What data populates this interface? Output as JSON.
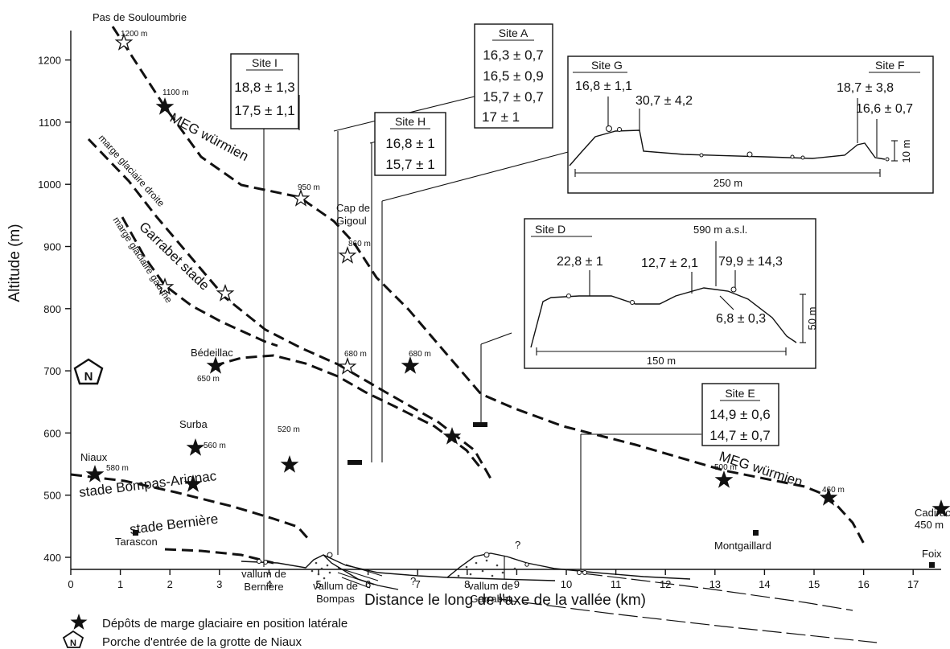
{
  "chart_data": {
    "type": "diagram",
    "xlabel": "Distance le long de l'axe de la vallée (km)",
    "ylabel": "Altitude (m)",
    "xlim": [
      0,
      17.5
    ],
    "ylim": [
      350,
      1230
    ],
    "xticks": [
      0,
      1,
      2,
      3,
      4,
      5,
      6,
      7,
      8,
      9,
      10,
      11,
      12,
      13,
      14,
      15,
      16,
      17
    ],
    "yticks": [
      400,
      500,
      600,
      700,
      800,
      900,
      1000,
      1100,
      1200
    ],
    "places": [
      {
        "label": "Pas de Souloumbrie",
        "x": 1.05,
        "y": 1208
      },
      {
        "label": "Cap de Gigoul",
        "x": 5.6,
        "y": 930
      },
      {
        "label": "Bédeillac",
        "x": 3.1,
        "y": 710
      },
      {
        "label": "Niaux",
        "x": 0.55,
        "y": 595
      },
      {
        "label": "Surba",
        "x": 2.5,
        "y": 580
      },
      {
        "label": "Tarascon",
        "x": 1.6,
        "y": 420
      },
      {
        "label": "Montgaillard",
        "x": 13.6,
        "y": 435
      },
      {
        "label": "Cadirac",
        "x": 17.05,
        "y": 480
      },
      {
        "label": "Foix",
        "x": 17.05,
        "y": 420
      }
    ],
    "altitude_labels": [
      {
        "text": "1200 m",
        "x": 1.1,
        "y": 1212
      },
      {
        "text": "1100 m",
        "x": 2.1,
        "y": 1118
      },
      {
        "text": "950 m",
        "x": 4.65,
        "y": 968
      },
      {
        "text": "860 m",
        "x": 5.75,
        "y": 878
      },
      {
        "text": "680 m",
        "x": 5.55,
        "y": 700
      },
      {
        "text": "680 m",
        "x": 6.95,
        "y": 700
      },
      {
        "text": "650 m",
        "x": 3.0,
        "y": 660
      },
      {
        "text": "580 m",
        "x": 0.8,
        "y": 600
      },
      {
        "text": "560 m",
        "x": 2.8,
        "y": 565
      },
      {
        "text": "520 m",
        "x": 4.4,
        "y": 536
      },
      {
        "text": "500 m",
        "x": 13.0,
        "y": 517
      },
      {
        "text": "460 m",
        "x": 15.2,
        "y": 480
      },
      {
        "text": "450 m",
        "x": 17.05,
        "y": 465
      }
    ],
    "line_labels": [
      {
        "text": "MEG würmien",
        "x": 2.5,
        "y": 1050,
        "angle": 28
      },
      {
        "text": "MEG würmien",
        "x": 8.8,
        "y": 585,
        "angle": 18
      },
      {
        "text": "marge glaciaire droite",
        "x": 1.8,
        "y": 960,
        "angle": 48
      },
      {
        "text": "Garrabet stade",
        "x": 2.6,
        "y": 850,
        "angle": 44
      },
      {
        "text": "marge glaciaire gauche",
        "x": 1.3,
        "y": 870,
        "angle": 57
      },
      {
        "text": "stade Bompas-Arignac",
        "x": 0.4,
        "y": 540,
        "angle": -7
      },
      {
        "text": "stade Bernière",
        "x": 1.0,
        "y": 465,
        "angle": -7
      }
    ],
    "vallums": [
      {
        "label1": "vallum de",
        "label2": "Bernière",
        "x": 3.8
      },
      {
        "label1": "vallum de",
        "label2": "Bompas",
        "x": 5.15
      },
      {
        "label1": "vallum de",
        "label2": "Garrabet",
        "x": 8.5
      }
    ],
    "sites": [
      {
        "name": "Site I",
        "ages": [
          "18,8 ± 1,3",
          "17,5 ± 1,1"
        ]
      },
      {
        "name": "Site A",
        "ages": [
          "16,3 ± 0,7",
          "16,5 ± 0,9",
          "15,7 ± 0,7",
          "17 ± 1"
        ]
      },
      {
        "name": "Site H",
        "ages": [
          "16,8 ± 1",
          "15,7 ± 1"
        ]
      },
      {
        "name": "Site E",
        "ages": [
          "14,9 ± 0,6",
          "14,7 ± 0,7"
        ]
      }
    ],
    "inset_top": {
      "site_left": "Site G",
      "site_right": "Site F",
      "ages": [
        "16,8 ± 1,1",
        "30,7 ± 4,2",
        "18,7 ± 3,8",
        "16,6 ± 0,7"
      ],
      "scale_h": "250 m",
      "scale_v": "10 m"
    },
    "inset_bottom": {
      "site": "Site D",
      "ages": [
        "22,8 ± 1",
        "12,7 ± 2,1",
        "79,9 ± 14,3",
        "6,8 ± 0,3"
      ],
      "elev": "590 m a.s.l.",
      "scale_h": "150 m",
      "scale_v": "50 m"
    },
    "legend": [
      {
        "symbol": "filled-star",
        "text": "Dépôts de marge glaciaire en position latérale"
      },
      {
        "symbol": "pentagon-N",
        "text": "Porche d'entrée de la grotte de Niaux"
      }
    ],
    "question_mark": "?",
    "north_letter": "N"
  }
}
